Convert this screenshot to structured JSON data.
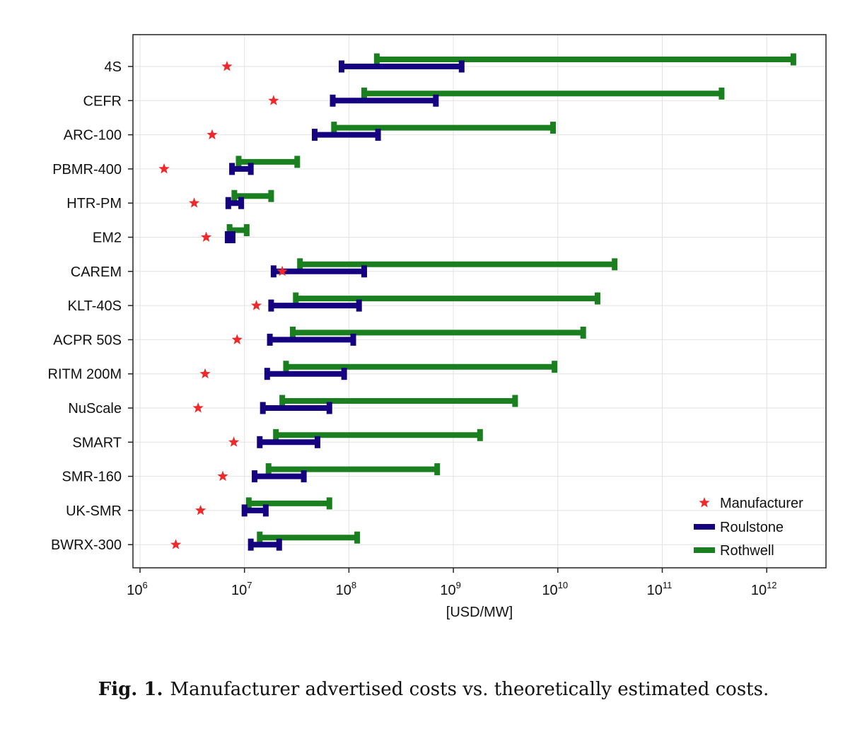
{
  "chart_data": {
    "type": "range-dot",
    "title": "",
    "xlabel": "[USD/MW]",
    "ylabel": "",
    "xscale": "log10",
    "xlim": [
      800000,
      2400000000000
    ],
    "xticks": [
      {
        "value": 1000000,
        "base": "10",
        "exp": "6"
      },
      {
        "value": 10000000,
        "base": "10",
        "exp": "7"
      },
      {
        "value": 100000000,
        "base": "10",
        "exp": "8"
      },
      {
        "value": 1000000000,
        "base": "10",
        "exp": "9"
      },
      {
        "value": 10000000000,
        "base": "10",
        "exp": "10"
      },
      {
        "value": 100000000000,
        "base": "10",
        "exp": "11"
      },
      {
        "value": 1000000000000,
        "base": "10",
        "exp": "12"
      }
    ],
    "grid": true,
    "legend": {
      "position": "bottom-right",
      "entries": [
        {
          "name": "Manufacturer",
          "marker": "star",
          "color": "#f0282a"
        },
        {
          "name": "Roulstone",
          "marker": "line",
          "color": "#150080"
        },
        {
          "name": "Rothwell",
          "marker": "line",
          "color": "#1a7f1f"
        }
      ]
    },
    "categories": [
      "4S",
      "CEFR",
      "ARC-100",
      "PBMR-400",
      "HTR-PM",
      "EM2",
      "CAREM",
      "KLT-40S",
      "ACPR 50S",
      "RITM 200M",
      "NuScale",
      "SMART",
      "SMR-160",
      "UK-SMR",
      "BWRX-300"
    ],
    "series": [
      {
        "name": "Manufacturer",
        "kind": "point",
        "color": "#f0282a",
        "values": [
          6800000,
          19000000,
          4900000,
          1700000,
          3300000,
          4300000,
          23000000,
          13000000,
          8500000,
          4200000,
          3600000,
          7900000,
          6200000,
          3800000,
          2200000
        ]
      },
      {
        "name": "Roulstone",
        "kind": "range",
        "color": "#150080",
        "low": [
          85000000,
          70000000,
          47000000,
          7600000,
          7000000,
          6900000,
          19000000,
          18000000,
          17500000,
          16500000,
          15000000,
          14000000,
          12500000,
          10000000,
          11500000
        ],
        "high": [
          1200000000,
          680000000,
          190000000,
          11500000,
          9300000,
          7700000,
          140000000,
          125000000,
          110000000,
          90000000,
          65000000,
          50000000,
          37000000,
          16000000,
          21500000
        ]
      },
      {
        "name": "Rothwell",
        "kind": "range",
        "color": "#1a7f1f",
        "low": [
          185000000,
          140000000,
          72000000,
          8800000,
          8000000,
          7200000,
          34000000,
          31000000,
          29000000,
          25000000,
          23000000,
          20000000,
          17000000,
          11000000,
          14000000
        ],
        "high": [
          1800000000000,
          370000000000,
          9000000000,
          32000000,
          18000000,
          10500000,
          35000000000,
          24000000000,
          17500000000,
          9300000000,
          3900000000,
          1800000000,
          700000000,
          65000000,
          120000000
        ]
      }
    ]
  },
  "caption": {
    "label": "Fig. 1.",
    "text": "Manufacturer advertised costs vs. theoretically estimated costs."
  }
}
